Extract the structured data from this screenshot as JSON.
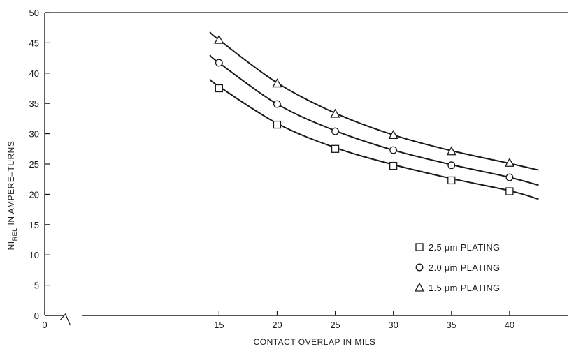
{
  "chart_data": {
    "type": "line",
    "title": "",
    "xlabel": "CONTACT OVERLAP IN MILS",
    "ylabel_main": "NI",
    "ylabel_sub": "REL",
    "ylabel_rest": " IN AMPERE–TURNS",
    "xlim": [
      0,
      45
    ],
    "ylim": [
      0,
      50
    ],
    "x_axis_break": true,
    "x_ticks": [
      0,
      15,
      20,
      25,
      30,
      35,
      40
    ],
    "y_ticks": [
      0,
      5,
      10,
      15,
      20,
      25,
      30,
      35,
      40,
      45,
      50
    ],
    "grid": false,
    "legend_position": "bottom-right",
    "series": [
      {
        "name": "2.5 μm PLATING",
        "marker": "square",
        "x": [
          15,
          20,
          25,
          30,
          35,
          40
        ],
        "values": [
          37.5,
          31.5,
          27.5,
          24.7,
          22.3,
          20.5
        ],
        "curve_x": [
          14.2,
          15,
          20,
          25,
          30,
          35,
          40,
          42.5
        ],
        "curve_y": [
          39.0,
          37.8,
          31.7,
          27.7,
          24.9,
          22.6,
          20.6,
          19.2
        ]
      },
      {
        "name": "2.0 μm PLATING",
        "marker": "circle",
        "x": [
          15,
          20,
          25,
          30,
          35,
          40
        ],
        "values": [
          41.7,
          34.9,
          30.4,
          27.3,
          24.8,
          22.8
        ],
        "curve_x": [
          14.2,
          15,
          20,
          25,
          30,
          35,
          40,
          42.5
        ],
        "curve_y": [
          43.0,
          41.7,
          34.9,
          30.5,
          27.3,
          24.9,
          22.8,
          21.5
        ]
      },
      {
        "name": "1.5 μm PLATING",
        "marker": "triangle",
        "x": [
          15,
          20,
          25,
          30,
          35,
          40
        ],
        "values": [
          45.5,
          38.3,
          33.3,
          29.8,
          27.1,
          25.2
        ],
        "curve_x": [
          14.2,
          15,
          20,
          25,
          30,
          35,
          40,
          42.5
        ],
        "curve_y": [
          46.8,
          45.5,
          38.4,
          33.4,
          29.8,
          27.2,
          25.1,
          24.0
        ]
      }
    ],
    "line_color": "#1a1a1a"
  }
}
